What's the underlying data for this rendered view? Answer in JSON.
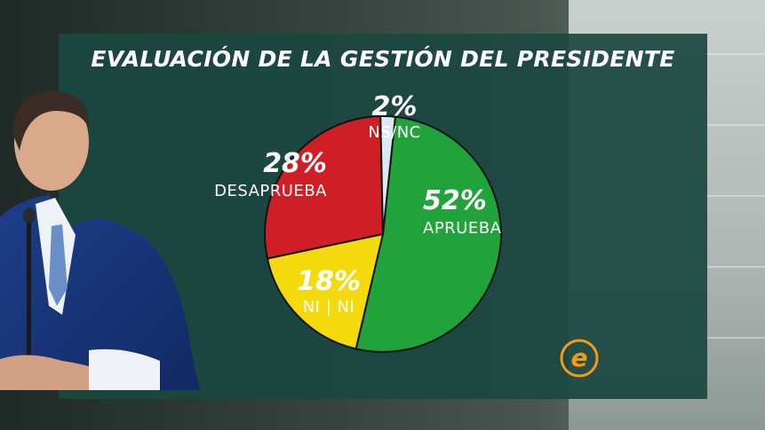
{
  "chart_data": {
    "type": "pie",
    "title": "EVALUACIÓN DE LA GESTIÓN DEL PRESIDENTE",
    "slices": [
      {
        "label": "APRUEBA",
        "percent_label": "52%",
        "value": 52,
        "color": "#1fa33a"
      },
      {
        "label": "NI | NI",
        "percent_label": "18%",
        "value": 18,
        "color": "#f4d90c"
      },
      {
        "label": "DESAPRUEBA",
        "percent_label": "28%",
        "value": 28,
        "color": "#cf1e25"
      },
      {
        "label": "NS/NC",
        "percent_label": "2%",
        "value": 2,
        "color": "#d9eaf2"
      }
    ]
  },
  "colors": {
    "panel": "#1b4741",
    "slice_outline": "#0d1512",
    "logo_orange": "#f39a1b"
  },
  "logo": {
    "name": "channel-e-logo",
    "letter": "e"
  }
}
